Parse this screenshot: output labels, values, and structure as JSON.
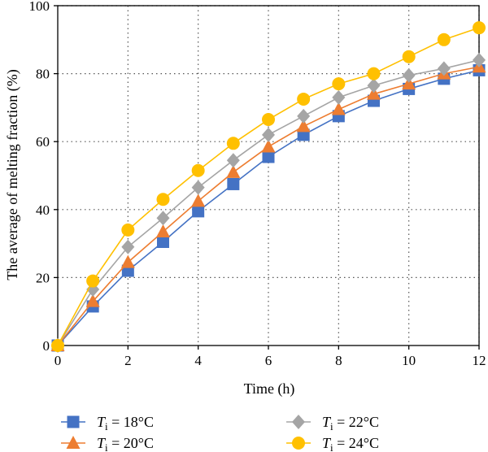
{
  "chart_data": {
    "type": "line",
    "xlabel": "Time (h)",
    "ylabel": "The average of melting fraction (%)",
    "xlim": [
      0,
      12
    ],
    "ylim": [
      0,
      100
    ],
    "xticks": [
      0,
      2,
      4,
      6,
      8,
      10,
      12
    ],
    "yticks": [
      0,
      20,
      40,
      60,
      80,
      100
    ],
    "grid": true,
    "x": [
      0,
      1,
      2,
      3,
      4,
      5,
      6,
      7,
      8,
      9,
      10,
      11,
      12
    ],
    "series": [
      {
        "name": "= 18°C",
        "symbol_main": "T",
        "symbol_sub": "i",
        "marker": "square",
        "color": "#4472c4",
        "values": [
          0,
          11.5,
          22,
          30.5,
          39.5,
          47.5,
          55.5,
          62,
          67.5,
          72,
          75.5,
          78.5,
          81
        ]
      },
      {
        "name": "= 20°C",
        "symbol_main": "T",
        "symbol_sub": "i",
        "marker": "triangle",
        "color": "#ed7d31",
        "values": [
          0,
          13,
          24.5,
          33.5,
          42.5,
          51,
          58.5,
          64.5,
          69.5,
          74,
          77,
          80,
          82
        ]
      },
      {
        "name": "= 22°C",
        "symbol_main": "T",
        "symbol_sub": "i",
        "marker": "diamond",
        "color": "#a5a5a5",
        "values": [
          0,
          16.5,
          29,
          37.5,
          46.5,
          54.5,
          62,
          67.5,
          73,
          76.5,
          79.5,
          81.5,
          84
        ]
      },
      {
        "name": "= 24°C",
        "symbol_main": "T",
        "symbol_sub": "i",
        "marker": "circle",
        "color": "#ffc000",
        "values": [
          0,
          19,
          34,
          43,
          51.5,
          59.5,
          66.5,
          72.5,
          77,
          80,
          85,
          90,
          93.5
        ]
      }
    ],
    "legend_position": "bottom"
  }
}
